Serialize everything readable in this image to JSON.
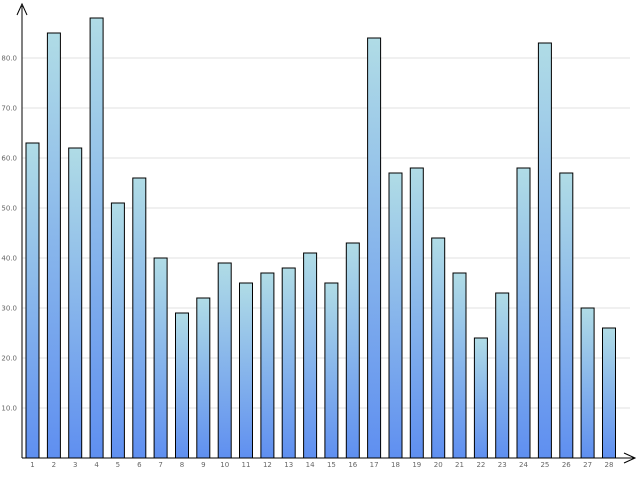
{
  "chart_data": {
    "type": "bar",
    "categories": [
      "1",
      "2",
      "3",
      "4",
      "5",
      "6",
      "7",
      "8",
      "9",
      "10",
      "11",
      "12",
      "13",
      "14",
      "15",
      "16",
      "17",
      "18",
      "19",
      "20",
      "21",
      "22",
      "23",
      "24",
      "25",
      "26",
      "27",
      "28"
    ],
    "values": [
      63,
      85,
      62,
      88,
      51,
      56,
      40,
      29,
      32,
      39,
      35,
      37,
      38,
      41,
      35,
      43,
      84,
      57,
      58,
      44,
      37,
      24,
      33,
      58,
      83,
      57,
      30,
      26
    ],
    "yticks": [
      "10.0",
      "20.0",
      "30.0",
      "40.0",
      "50.0",
      "60.0",
      "70.0",
      "80.0"
    ],
    "ylim": [
      0,
      90
    ],
    "grid": true,
    "legend": "none",
    "title": "",
    "xlabel": "",
    "ylabel": "",
    "colors": {
      "bar_top": "#b0dce6",
      "bar_bottom": "#5f8ff0",
      "grid": "#e2e2e2",
      "axis": "#000000",
      "tick_text": "#666666"
    }
  }
}
